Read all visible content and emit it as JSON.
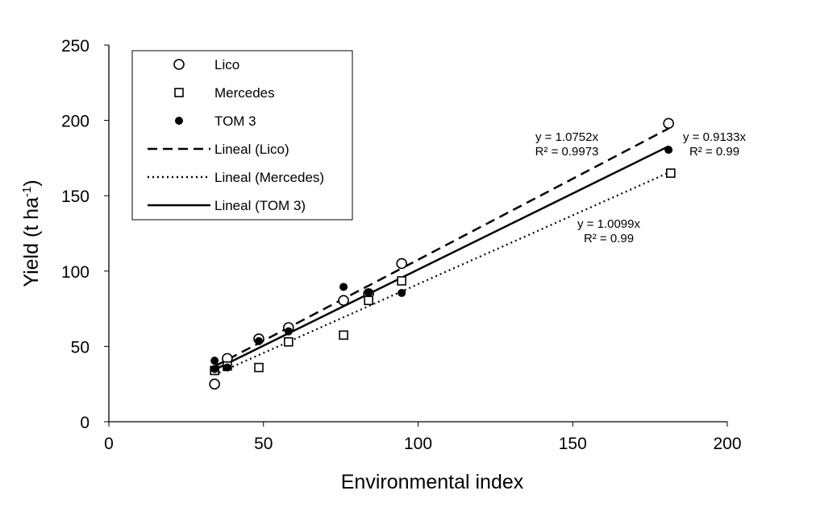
{
  "chart_data": {
    "type": "scatter",
    "xlabel": "Environmental index",
    "ylabel": "Yield (t ha",
    "ylabel_sup": "-1",
    "ylabel_close": ")",
    "xlim": [
      0,
      200
    ],
    "ylim": [
      0,
      250
    ],
    "xticks": [
      0,
      50,
      100,
      150,
      200
    ],
    "yticks": [
      0,
      50,
      100,
      150,
      200,
      250
    ],
    "grid": false,
    "legend_position": "top-left",
    "series": [
      {
        "name": "Lico",
        "marker": "open-circle",
        "points": [
          [
            34.2,
            25
          ],
          [
            38.3,
            42
          ],
          [
            48.5,
            55
          ],
          [
            58.1,
            62.5
          ],
          [
            75.9,
            80.5
          ],
          [
            84,
            85
          ],
          [
            94.7,
            105
          ],
          [
            181,
            198
          ]
        ]
      },
      {
        "name": "Mercedes",
        "marker": "open-square",
        "points": [
          [
            34.2,
            34
          ],
          [
            38.3,
            37
          ],
          [
            48.5,
            36
          ],
          [
            58.1,
            53
          ],
          [
            75.9,
            57.5
          ],
          [
            84,
            80.5
          ],
          [
            94.7,
            93.5
          ],
          [
            181.7,
            165
          ]
        ]
      },
      {
        "name": "TOM 3",
        "marker": "filled-circle",
        "points": [
          [
            34.2,
            40.5
          ],
          [
            34.2,
            35
          ],
          [
            38.3,
            36
          ],
          [
            48.5,
            53.5
          ],
          [
            58.1,
            60
          ],
          [
            75.9,
            89.5
          ],
          [
            84,
            85.5
          ],
          [
            94.7,
            85.5
          ],
          [
            181,
            180.5
          ]
        ]
      }
    ],
    "trendlines": [
      {
        "name": "Lineal (Lico)",
        "style": "dashed",
        "slope": 1.0752,
        "x_range": [
          34.2,
          181
        ],
        "equation": "y = 1.0752x",
        "r2": "R² = 0.9973"
      },
      {
        "name": "Lineal (Mercedes)",
        "style": "dotted",
        "slope": 0.9133,
        "x_range": [
          34.2,
          181.7
        ],
        "equation": "y = 0.9133x",
        "r2": "R² = 0.99"
      },
      {
        "name": "Lineal (TOM 3)",
        "style": "solid",
        "slope": 1.0099,
        "x_range": [
          34.2,
          181
        ],
        "equation": "y = 1.0099x",
        "r2": "R² = 0.99"
      }
    ]
  }
}
